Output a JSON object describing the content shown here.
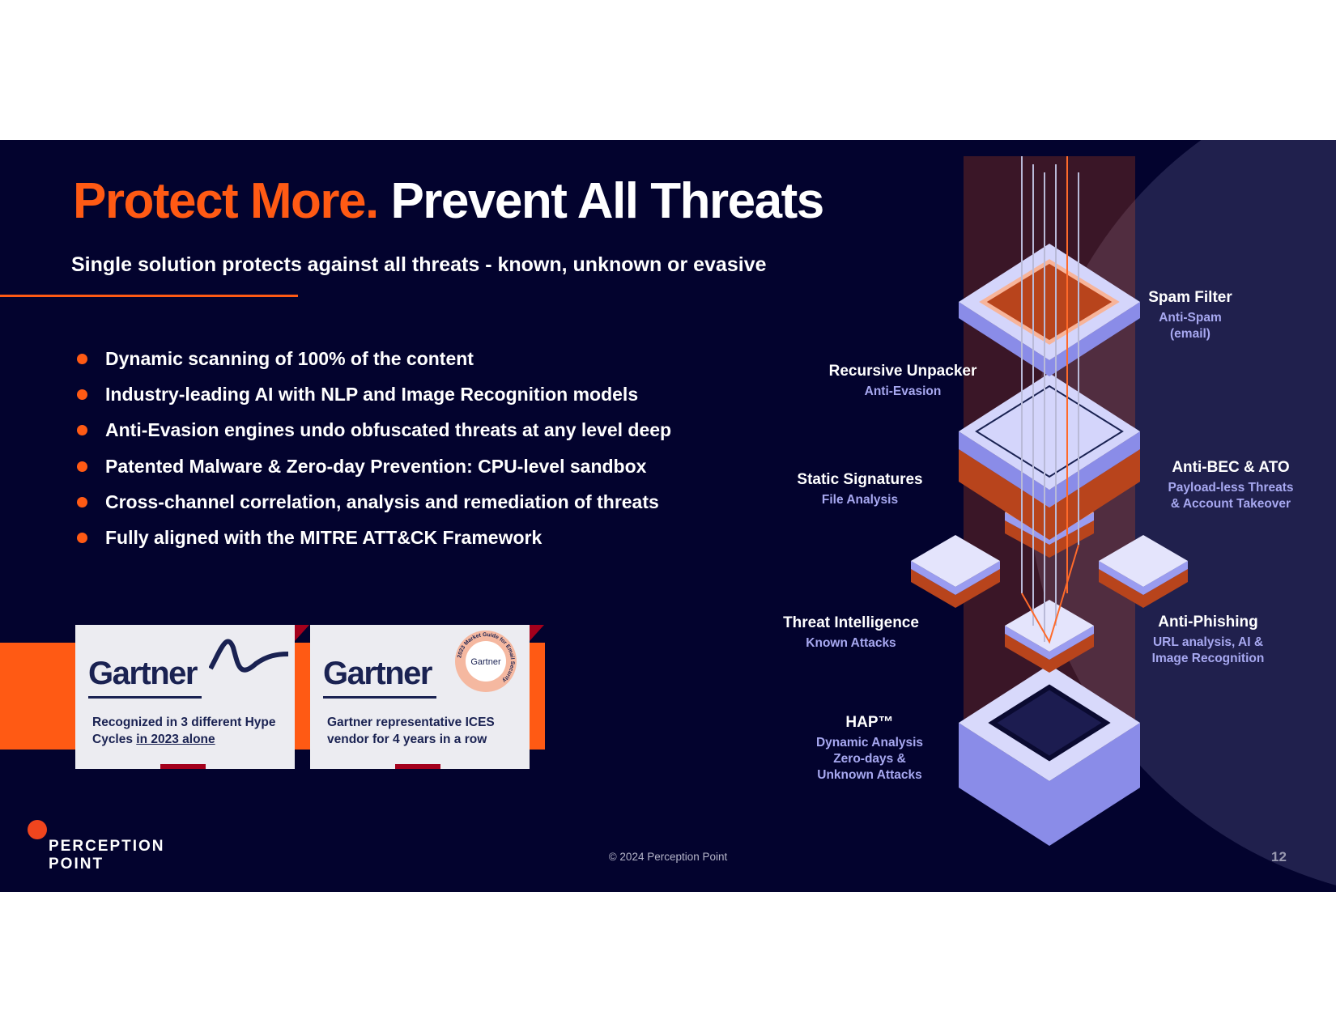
{
  "title": {
    "highlight": "Protect More.",
    "main": "Prevent All Threats"
  },
  "subtitle": "Single solution protects against all threats - known, unknown or evasive",
  "bullets": [
    "Dynamic scanning of 100% of the content",
    "Industry-leading AI with NLP and Image Recognition models",
    "Anti-Evasion engines undo obfuscated threats at any level deep",
    "Patented Malware & Zero-day Prevention: CPU-level sandbox",
    "Cross-channel correlation, analysis and remediation of threats",
    "Fully aligned with the MITRE ATT&CK Framework"
  ],
  "cards": [
    {
      "logo": "Gartner",
      "text": "Recognized in 3 different Hype Cycles ",
      "link": "in 2023 alone"
    },
    {
      "logo": "Gartner",
      "badge": "Gartner",
      "badge_ring": "2023 Market Guide for Email Security",
      "text": "Gartner representative ICES vendor for 4 years in a row"
    }
  ],
  "layers": {
    "spam": {
      "title": "Spam Filter",
      "sub1": "Anti-Spam",
      "sub2": "(email)"
    },
    "unpacker": {
      "title": "Recursive Unpacker",
      "sub1": "Anti-Evasion"
    },
    "static": {
      "title": "Static Signatures",
      "sub1": "File Analysis"
    },
    "bec": {
      "title": "Anti-BEC & ATO",
      "sub1": "Payload-less Threats",
      "sub2": "& Account Takeover"
    },
    "ti": {
      "title": "Threat Intelligence",
      "sub1": "Known Attacks"
    },
    "phishing": {
      "title": "Anti-Phishing",
      "sub1": "URL analysis, AI &",
      "sub2": "Image Recognition"
    },
    "hap": {
      "title": "HAP™",
      "sub1": "Dynamic Analysis",
      "sub2": "Zero-days &",
      "sub3": "Unknown Attacks"
    }
  },
  "footer": {
    "copyright": "© 2024 Perception Point",
    "page": "12",
    "logo_line1": "PERCEPTION",
    "logo_line2": "POINT"
  },
  "colors": {
    "background": "#03032e",
    "accent": "#ff5a14",
    "layer": "#c8c9f5"
  }
}
